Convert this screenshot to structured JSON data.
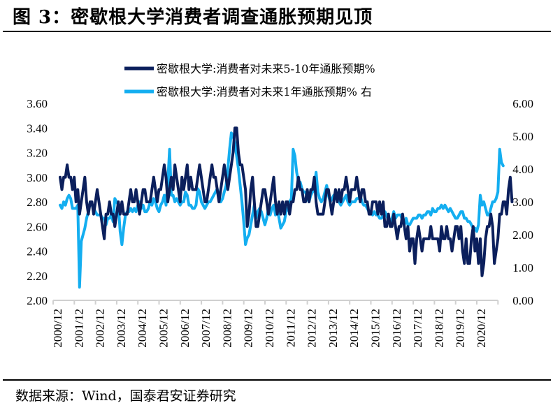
{
  "figure": {
    "title": "图 3：密歇根大学消费者调查通胀预期见顶",
    "source": "数据来源：Wind，国泰君安证券研究"
  },
  "colors": {
    "series_long": "#0b1f5c",
    "series_short": "#14aef0",
    "axis": "#d0d0d0"
  },
  "chart_data": {
    "type": "line",
    "title": "密歇根大学消费者调查通胀预期见顶",
    "xlabel": "",
    "ylabel_left": "",
    "ylabel_right": "",
    "legend_position": "top-center",
    "grid": false,
    "x_start": "2000/12",
    "x_frequency": "monthly",
    "x_tick_labels": [
      "2000/12",
      "2001/12",
      "2002/12",
      "2003/12",
      "2004/12",
      "2005/12",
      "2006/12",
      "2007/12",
      "2008/12",
      "2009/12",
      "2010/12",
      "2011/12",
      "2012/12",
      "2013/12",
      "2014/12",
      "2015/12",
      "2016/12",
      "2017/12",
      "2018/12",
      "2019/12",
      "2020/12"
    ],
    "y_left": {
      "ylim": [
        2.0,
        3.6
      ],
      "ticks": [
        "2.00",
        "2.20",
        "2.40",
        "2.60",
        "2.80",
        "3.00",
        "3.20",
        "3.40",
        "3.60"
      ]
    },
    "y_right": {
      "ylim": [
        0.0,
        6.0
      ],
      "ticks": [
        "0.00",
        "1.00",
        "2.00",
        "3.00",
        "4.00",
        "5.00",
        "6.00"
      ]
    },
    "series": [
      {
        "name": "密歇根大学:消费者对未来5-10年通胀预期%",
        "axis": "left",
        "values": [
          3.0,
          2.9,
          3.0,
          3.0,
          3.1,
          3.0,
          3.0,
          2.9,
          3.0,
          2.8,
          2.9,
          2.7,
          2.8,
          2.9,
          3.0,
          2.8,
          2.7,
          2.8,
          2.8,
          2.7,
          2.8,
          2.9,
          2.8,
          2.7,
          2.6,
          2.5,
          2.7,
          2.7,
          2.8,
          2.7,
          2.7,
          2.6,
          2.7,
          2.8,
          2.7,
          2.8,
          2.7,
          2.7,
          2.7,
          2.8,
          2.9,
          2.8,
          2.8,
          2.9,
          2.8,
          2.7,
          2.8,
          2.9,
          2.9,
          2.8,
          2.8,
          2.8,
          2.9,
          3.0,
          2.9,
          2.8,
          2.9,
          2.9,
          3.0,
          3.1,
          3.0,
          2.8,
          2.9,
          3.0,
          2.9,
          3.1,
          3.0,
          2.9,
          2.8,
          3.0,
          2.9,
          3.0,
          3.1,
          2.9,
          3.0,
          2.9,
          2.9,
          2.9,
          3.0,
          3.1,
          3.0,
          2.9,
          2.8,
          2.8,
          2.9,
          3.0,
          3.1,
          3.0,
          3.0,
          2.9,
          2.8,
          2.9,
          3.0,
          3.1,
          3.0,
          2.9,
          3.0,
          3.1,
          3.2,
          3.4,
          3.4,
          3.2,
          3.1,
          3.1,
          3.0,
          2.9,
          2.6,
          2.7,
          2.9,
          3.0,
          2.8,
          2.6,
          2.6,
          2.7,
          2.8,
          2.9,
          2.9,
          2.8,
          2.7,
          2.8,
          2.9,
          3.0,
          2.8,
          2.7,
          2.8,
          2.7,
          2.8,
          2.7,
          2.8,
          2.8,
          2.7,
          2.8,
          2.8,
          2.9,
          2.9,
          3.0,
          2.9,
          2.9,
          2.8,
          2.8,
          2.9,
          2.8,
          2.9,
          2.9,
          3.0,
          2.8,
          2.7,
          2.7,
          2.7,
          2.7,
          2.8,
          2.9,
          2.9,
          2.8,
          2.7,
          2.8,
          2.9,
          2.8,
          2.9,
          2.8,
          2.9,
          2.9,
          3.0,
          2.9,
          2.8,
          2.9,
          2.9,
          2.9,
          3.0,
          2.9,
          2.8,
          2.9,
          2.9,
          2.8,
          2.8,
          2.7,
          2.7,
          2.8,
          2.8,
          2.8,
          2.7,
          2.8,
          2.7,
          2.8,
          2.6,
          2.6,
          2.7,
          2.6,
          2.6,
          2.7,
          2.6,
          2.5,
          2.6,
          2.6,
          2.7,
          2.6,
          2.5,
          2.6,
          2.4,
          2.5,
          2.5,
          2.3,
          2.5,
          2.6,
          2.5,
          2.4,
          2.5,
          2.5,
          2.5,
          2.5,
          2.6,
          2.5,
          2.5,
          2.5,
          2.5,
          2.4,
          2.6,
          2.5,
          2.5,
          2.6,
          2.5,
          2.5,
          2.4,
          2.5,
          2.6,
          2.6,
          2.5,
          2.6,
          2.4,
          2.3,
          2.5,
          2.3,
          2.3,
          2.5,
          2.6,
          2.4,
          2.5,
          2.3,
          2.5,
          2.2,
          2.3,
          2.5,
          2.6,
          2.6,
          2.7,
          2.6,
          2.3,
          2.4,
          2.5,
          2.7,
          2.7,
          2.8,
          2.8,
          2.7,
          2.9,
          3.0,
          2.8
        ]
      },
      {
        "name": "密歇根大学:消费者对未来1年通胀预期% 右",
        "axis": "right",
        "values": [
          2.9,
          2.8,
          3.0,
          2.9,
          3.1,
          3.2,
          3.1,
          2.8,
          2.8,
          2.8,
          2.9,
          0.4,
          1.8,
          2.0,
          2.2,
          2.5,
          2.7,
          3.0,
          2.9,
          2.8,
          2.7,
          2.6,
          2.6,
          2.6,
          2.5,
          2.5,
          2.3,
          2.5,
          2.5,
          2.6,
          2.4,
          3.1,
          3.0,
          2.9,
          2.1,
          1.7,
          2.2,
          2.6,
          2.7,
          2.7,
          2.8,
          2.7,
          2.8,
          2.7,
          2.9,
          3.0,
          2.8,
          2.9,
          2.7,
          2.7,
          2.8,
          3.0,
          2.9,
          3.1,
          3.0,
          2.8,
          2.7,
          2.9,
          3.0,
          3.2,
          2.9,
          3.6,
          4.6,
          3.2,
          3.2,
          3.0,
          3.1,
          3.0,
          2.9,
          3.0,
          3.0,
          3.3,
          3.2,
          2.9,
          2.9,
          2.8,
          2.8,
          2.9,
          3.4,
          3.3,
          3.0,
          2.9,
          2.8,
          2.9,
          3.0,
          3.0,
          3.1,
          3.2,
          3.3,
          3.4,
          3.1,
          3.0,
          3.1,
          3.3,
          3.5,
          4.0,
          4.6,
          5.1,
          5.0,
          4.8,
          4.4,
          4.0,
          3.5,
          3.0,
          2.4,
          1.7,
          1.9,
          2.0,
          2.3,
          2.6,
          2.9,
          2.5,
          2.7,
          2.8,
          2.7,
          2.5,
          2.3,
          2.5,
          2.8,
          2.6,
          2.8,
          2.9,
          2.6,
          2.8,
          2.5,
          2.2,
          2.3,
          2.4,
          2.7,
          2.8,
          3.0,
          3.1,
          4.6,
          4.4,
          3.9,
          3.6,
          3.6,
          3.4,
          3.3,
          3.3,
          3.1,
          3.0,
          3.2,
          3.3,
          3.4,
          3.9,
          3.3,
          3.1,
          3.0,
          3.1,
          3.3,
          3.5,
          3.2,
          3.0,
          3.1,
          3.2,
          3.1,
          3.1,
          3.0,
          2.9,
          3.0,
          3.1,
          3.2,
          3.0,
          2.9,
          3.0,
          3.0,
          3.0,
          3.1,
          3.1,
          3.2,
          3.0,
          2.9,
          2.9,
          2.8,
          2.7,
          2.7,
          2.6,
          2.7,
          2.6,
          2.6,
          2.5,
          2.5,
          2.6,
          2.7,
          2.6,
          2.4,
          2.4,
          2.5,
          2.7,
          2.5,
          2.6,
          2.6,
          2.6,
          2.4,
          2.3,
          2.5,
          2.3,
          2.3,
          2.4,
          2.5,
          2.5,
          2.5,
          2.6,
          2.6,
          2.5,
          2.6,
          2.6,
          2.7,
          2.7,
          2.6,
          2.8,
          2.7,
          2.7,
          2.8,
          2.8,
          2.9,
          2.8,
          2.9,
          2.8,
          2.7,
          2.8,
          2.7,
          2.6,
          2.5,
          2.5,
          2.6,
          2.7,
          2.7,
          2.5,
          2.5,
          2.4,
          2.4,
          2.3,
          2.2,
          2.2,
          2.1,
          2.3,
          3.2,
          2.9,
          3.0,
          2.8,
          2.6,
          2.6,
          2.8,
          3.0,
          3.0,
          3.1,
          3.3,
          4.6,
          4.2,
          4.1
        ]
      }
    ]
  }
}
